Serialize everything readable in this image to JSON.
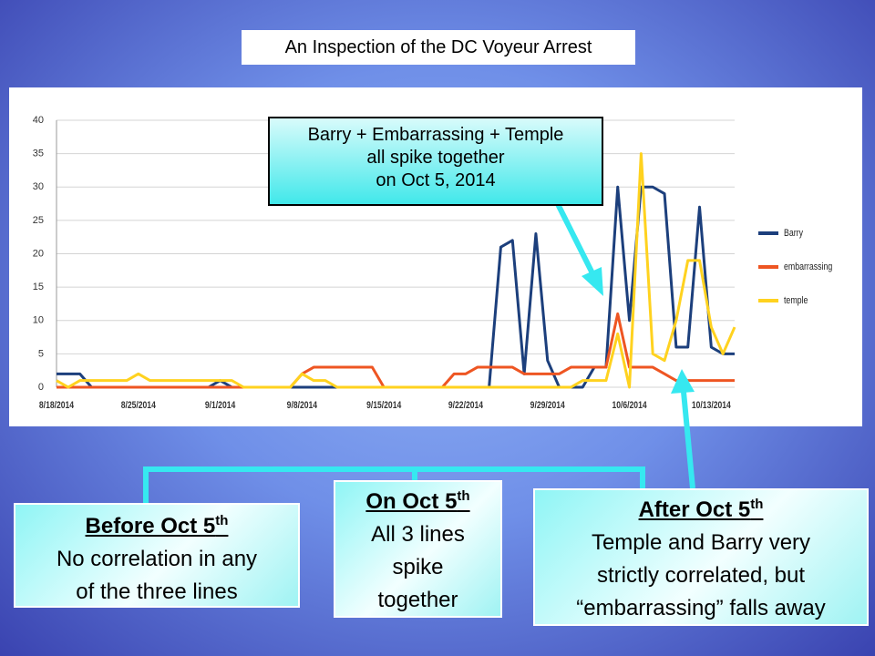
{
  "slide": {
    "title": "An Inspection of the DC Voyeur Arrest",
    "callout": [
      "Barry + Embarrassing + Temple",
      "all spike together",
      "on Oct 5, 2014"
    ],
    "boxes": [
      {
        "heading": "Before Oct 5",
        "sup": "th",
        "lines": [
          "No correlation in any",
          "of the three lines"
        ]
      },
      {
        "heading": "On Oct 5",
        "sup": "th",
        "lines": [
          "All 3 lines",
          "spike",
          "together"
        ]
      },
      {
        "heading": "After Oct 5",
        "sup": "th",
        "lines": [
          "Temple and Barry very",
          "strictly correlated, but",
          "“embarrassing” falls away"
        ]
      }
    ]
  },
  "chart_data": {
    "type": "line",
    "categories": [
      "8/18/2014",
      null,
      null,
      null,
      null,
      null,
      null,
      "8/25/2014",
      null,
      null,
      null,
      null,
      null,
      null,
      "9/1/2014",
      null,
      null,
      null,
      null,
      null,
      null,
      "9/8/2014",
      null,
      null,
      null,
      null,
      null,
      null,
      "9/15/2014",
      null,
      null,
      null,
      null,
      null,
      null,
      "9/22/2014",
      null,
      null,
      null,
      null,
      null,
      null,
      "9/29/2014",
      null,
      null,
      null,
      null,
      null,
      null,
      "10/6/2014",
      null,
      null,
      null,
      null,
      null,
      null,
      "10/13/2014",
      null,
      null
    ],
    "series": [
      {
        "name": "Barry",
        "color": "#1c3f7c",
        "values": [
          2,
          2,
          2,
          0,
          0,
          0,
          0,
          0,
          0,
          0,
          0,
          0,
          0,
          0,
          1,
          0,
          0,
          0,
          0,
          0,
          0,
          0,
          0,
          0,
          0,
          0,
          0,
          0,
          0,
          0,
          0,
          0,
          0,
          0,
          0,
          0,
          0,
          0,
          21,
          22,
          2,
          23,
          4,
          0,
          0,
          0,
          3,
          3,
          30,
          10,
          30,
          30,
          29,
          6,
          6,
          27,
          6,
          5,
          5
        ]
      },
      {
        "name": "embarrassing",
        "color": "#ee5522",
        "values": [
          0,
          0,
          0,
          0,
          0,
          0,
          0,
          0,
          0,
          0,
          0,
          0,
          0,
          0,
          0,
          0,
          0,
          0,
          0,
          0,
          0,
          2,
          3,
          3,
          3,
          3,
          3,
          3,
          0,
          0,
          0,
          0,
          0,
          0,
          2,
          2,
          3,
          3,
          3,
          3,
          2,
          2,
          2,
          2,
          3,
          3,
          3,
          3,
          11,
          3,
          3,
          3,
          2,
          1,
          1,
          1,
          1,
          1,
          1
        ]
      },
      {
        "name": "temple",
        "color": "#ffd21f",
        "values": [
          1,
          0,
          1,
          1,
          1,
          1,
          1,
          2,
          1,
          1,
          1,
          1,
          1,
          1,
          1,
          1,
          0,
          0,
          0,
          0,
          0,
          2,
          1,
          1,
          0,
          0,
          0,
          0,
          0,
          0,
          0,
          0,
          0,
          0,
          0,
          0,
          0,
          0,
          0,
          0,
          0,
          0,
          0,
          0,
          0,
          1,
          1,
          1,
          8,
          0,
          35,
          5,
          4,
          10,
          19,
          19,
          9,
          5,
          9
        ]
      }
    ],
    "ylim": [
      0,
      40
    ],
    "yticks": [
      0,
      5,
      10,
      15,
      20,
      25,
      30,
      35,
      40
    ],
    "grid": true,
    "legend": "right"
  }
}
